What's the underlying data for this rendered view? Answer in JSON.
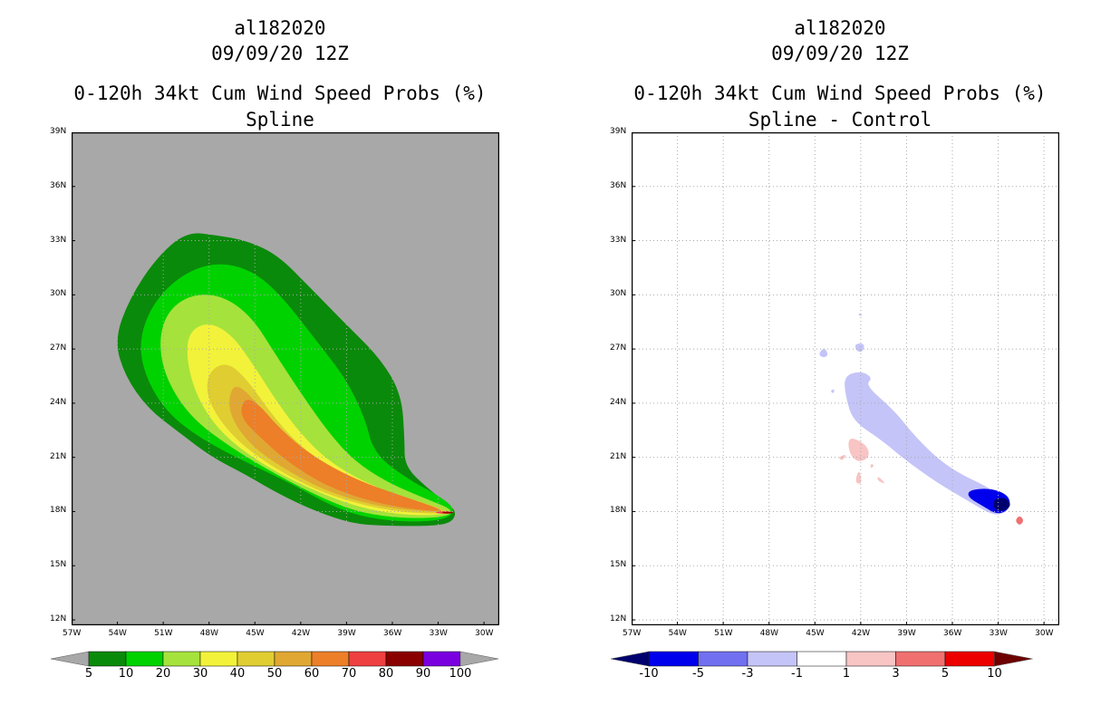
{
  "left": {
    "title_storm": "al182020",
    "title_time": "09/09/20 12Z",
    "title_product": "0-120h 34kt Cum Wind Speed Probs (%)",
    "subtitle": "Spline",
    "colorbar": {
      "labels": [
        "5",
        "10",
        "20",
        "30",
        "40",
        "50",
        "60",
        "70",
        "80",
        "90",
        "100"
      ],
      "colors": [
        "#0a8a0a",
        "#00d200",
        "#a6e23c",
        "#f2f23a",
        "#e0cd32",
        "#e0a832",
        "#ec7f28",
        "#ee4040",
        "#8a0000",
        "#7a00e0"
      ],
      "arrow_color": "#a8a8a8"
    },
    "background": "#a8a8a8"
  },
  "right": {
    "title_storm": "al182020",
    "title_time": "09/09/20 12Z",
    "title_product": "0-120h 34kt Cum Wind Speed Probs (%)",
    "subtitle": "Spline - Control",
    "colorbar": {
      "labels": [
        "-10",
        "-5",
        "-3",
        "-1",
        "1",
        "3",
        "5",
        "10"
      ],
      "colors": [
        "#0000ec",
        "#7070f0",
        "#c4c4f8",
        "#ffffff",
        "#f8c4c4",
        "#f07070",
        "#ec0000"
      ],
      "arrow_left_color": "#00006e",
      "arrow_right_color": "#6e0000"
    }
  },
  "axes": {
    "x_ticks": [
      "57W",
      "54W",
      "51W",
      "48W",
      "45W",
      "42W",
      "39W",
      "36W",
      "33W",
      "30W"
    ],
    "y_ticks": [
      "39N",
      "36N",
      "33N",
      "30N",
      "27N",
      "24N",
      "21N",
      "18N",
      "15N",
      "12N"
    ],
    "x_range": [
      -57,
      -29
    ],
    "y_range": [
      11.7,
      39
    ]
  },
  "chart_data": [
    {
      "type": "heatmap",
      "title": "0-120h 34kt Cum Wind Speed Probs (%) - Spline",
      "levels": [
        5,
        10,
        20,
        30,
        40,
        50,
        60,
        70,
        80,
        90,
        100
      ],
      "contours": [
        {
          "level": 5,
          "lonlat": [
            [
              -54.2,
              27.5
            ],
            [
              -53.2,
              29.8
            ],
            [
              -51.5,
              32.0
            ],
            [
              -49.5,
              33.5
            ],
            [
              -47.5,
              33.3
            ],
            [
              -45.5,
              33.0
            ],
            [
              -43.5,
              32.2
            ],
            [
              -41.5,
              30.5
            ],
            [
              -39.2,
              28.5
            ],
            [
              -36.8,
              26.5
            ],
            [
              -35.4,
              24.5
            ],
            [
              -35.2,
              22.0
            ],
            [
              -35.2,
              20.5
            ],
            [
              -33.7,
              19.3
            ],
            [
              -32.5,
              18.5
            ],
            [
              -31.8,
              18.0
            ],
            [
              -32.1,
              17.4
            ],
            [
              -33.3,
              17.2
            ],
            [
              -36.0,
              17.2
            ],
            [
              -38.5,
              17.3
            ],
            [
              -41.0,
              18.0
            ],
            [
              -43.5,
              19.0
            ],
            [
              -45.5,
              20.0
            ],
            [
              -47.8,
              21.0
            ],
            [
              -50.0,
              22.4
            ],
            [
              -52.0,
              23.7
            ],
            [
              -53.5,
              25.5
            ]
          ]
        },
        {
          "level": 10,
          "lonlat": [
            [
              -52.6,
              27.5
            ],
            [
              -51.7,
              29.5
            ],
            [
              -50.0,
              31.0
            ],
            [
              -47.8,
              31.8
            ],
            [
              -45.5,
              31.5
            ],
            [
              -43.5,
              30.2
            ],
            [
              -41.0,
              27.5
            ],
            [
              -39.0,
              25.3
            ],
            [
              -37.8,
              23.2
            ],
            [
              -37.2,
              21.2
            ],
            [
              -35.0,
              19.8
            ],
            [
              -33.2,
              19.0
            ],
            [
              -31.9,
              18.2
            ],
            [
              -32.3,
              17.6
            ],
            [
              -34.5,
              17.4
            ],
            [
              -37.5,
              17.6
            ],
            [
              -40.0,
              18.3
            ],
            [
              -42.5,
              19.5
            ],
            [
              -45.5,
              20.7
            ],
            [
              -48.5,
              22.0
            ],
            [
              -50.8,
              23.5
            ],
            [
              -52.2,
              25.5
            ]
          ]
        },
        {
          "level": 20,
          "lonlat": [
            [
              -51.3,
              27.3
            ],
            [
              -50.8,
              29.0
            ],
            [
              -49.3,
              30.0
            ],
            [
              -47.2,
              30.0
            ],
            [
              -45.2,
              28.8
            ],
            [
              -43.5,
              26.5
            ],
            [
              -41.7,
              24.2
            ],
            [
              -40.2,
              22.4
            ],
            [
              -38.5,
              20.8
            ],
            [
              -36.3,
              19.6
            ],
            [
              -33.8,
              18.7
            ],
            [
              -32.0,
              18.1
            ],
            [
              -32.4,
              17.7
            ],
            [
              -35.0,
              17.6
            ],
            [
              -38.0,
              17.9
            ],
            [
              -40.5,
              18.7
            ],
            [
              -43.5,
              20.0
            ],
            [
              -46.5,
              21.5
            ],
            [
              -49.2,
              23.2
            ],
            [
              -50.8,
              25.3
            ]
          ]
        },
        {
          "level": 30,
          "lonlat": [
            [
              -49.5,
              26.5
            ],
            [
              -49.3,
              28.0
            ],
            [
              -48.0,
              28.5
            ],
            [
              -46.5,
              27.8
            ],
            [
              -45.0,
              26.0
            ],
            [
              -43.5,
              24.0
            ],
            [
              -42.0,
              22.3
            ],
            [
              -40.2,
              20.8
            ],
            [
              -37.8,
              19.6
            ],
            [
              -35.0,
              18.7
            ],
            [
              -32.5,
              18.1
            ],
            [
              -32.6,
              17.8
            ],
            [
              -35.5,
              17.8
            ],
            [
              -38.5,
              18.3
            ],
            [
              -41.5,
              19.3
            ],
            [
              -44.5,
              20.6
            ],
            [
              -47.2,
              22.3
            ],
            [
              -48.8,
              24.3
            ]
          ]
        },
        {
          "level": 40,
          "lonlat": [
            [
              -48.2,
              24.5
            ],
            [
              -48.0,
              25.8
            ],
            [
              -46.8,
              26.3
            ],
            [
              -45.5,
              25.3
            ],
            [
              -44.0,
              23.5
            ],
            [
              -42.3,
              21.8
            ],
            [
              -40.0,
              20.4
            ],
            [
              -37.0,
              19.3
            ],
            [
              -34.0,
              18.5
            ],
            [
              -32.4,
              18.05
            ],
            [
              -32.7,
              17.85
            ],
            [
              -36.0,
              18.0
            ],
            [
              -39.5,
              18.7
            ],
            [
              -42.5,
              19.8
            ],
            [
              -45.5,
              21.4
            ],
            [
              -47.3,
              23.0
            ]
          ]
        },
        {
          "level": 50,
          "lonlat": [
            [
              -46.8,
              23.6
            ],
            [
              -46.5,
              25.0
            ],
            [
              -45.7,
              24.8
            ],
            [
              -44.4,
              23.5
            ],
            [
              -42.7,
              21.8
            ],
            [
              -40.5,
              20.4
            ],
            [
              -37.8,
              19.4
            ],
            [
              -35.0,
              18.7
            ],
            [
              -32.6,
              18.1
            ],
            [
              -33.0,
              17.95
            ],
            [
              -36.5,
              18.2
            ],
            [
              -40.0,
              19.0
            ],
            [
              -43.0,
              20.3
            ],
            [
              -45.5,
              21.8
            ]
          ]
        },
        {
          "level": 60,
          "lonlat": [
            [
              -46.0,
              23.3
            ],
            [
              -45.7,
              24.3
            ],
            [
              -44.8,
              24.0
            ],
            [
              -43.4,
              22.6
            ],
            [
              -41.3,
              21.1
            ],
            [
              -38.5,
              19.8
            ],
            [
              -35.5,
              18.9
            ],
            [
              -32.7,
              18.1
            ],
            [
              -33.2,
              18.0
            ],
            [
              -36.5,
              18.35
            ],
            [
              -39.8,
              19.2
            ],
            [
              -42.5,
              20.5
            ],
            [
              -44.8,
              22.2
            ]
          ]
        },
        {
          "level": 70,
          "lonlat": [
            [
              -32.5,
              18.05
            ],
            [
              -31.9,
              17.95
            ],
            [
              -32.4,
              17.85
            ],
            [
              -33.4,
              17.95
            ]
          ]
        },
        {
          "level": 80,
          "lonlat": [
            [
              -32.2,
              18.0
            ],
            [
              -31.95,
              17.95
            ],
            [
              -32.3,
              17.88
            ],
            [
              -32.9,
              17.96
            ]
          ]
        }
      ]
    },
    {
      "type": "heatmap",
      "title": "0-120h 34kt Cum Wind Speed Probs (%) - Spline - Control",
      "levels": [
        -10,
        -5,
        -3,
        -1,
        1,
        3,
        5,
        10
      ],
      "contours": [
        {
          "level": -1,
          "lonlat": [
            [
              -43.1,
              25.5
            ],
            [
              -42.0,
              25.8
            ],
            [
              -41.2,
              25.4
            ],
            [
              -41.7,
              25.0
            ],
            [
              -39.8,
              23.6
            ],
            [
              -38.6,
              22.3
            ],
            [
              -36.8,
              20.8
            ],
            [
              -35.3,
              20.0
            ],
            [
              -34.0,
              19.5
            ],
            [
              -32.5,
              18.7
            ],
            [
              -32.1,
              18.3
            ],
            [
              -32.8,
              17.8
            ],
            [
              -33.6,
              17.9
            ],
            [
              -35.2,
              18.7
            ],
            [
              -37.0,
              19.6
            ],
            [
              -39.0,
              20.8
            ],
            [
              -40.7,
              22.0
            ],
            [
              -42.5,
              23.0
            ],
            [
              -43.0,
              24.4
            ]
          ]
        },
        {
          "level": -1,
          "lonlat": [
            [
              -44.8,
              26.7
            ],
            [
              -44.4,
              27.1
            ],
            [
              -44.1,
              26.7
            ],
            [
              -44.4,
              26.5
            ]
          ]
        },
        {
          "level": -1,
          "lonlat": [
            [
              -42.4,
              27.3
            ],
            [
              -41.7,
              27.3
            ],
            [
              -41.9,
              26.8
            ],
            [
              -42.3,
              26.9
            ]
          ]
        },
        {
          "level": -1,
          "lonlat": [
            [
              -42.2,
              28.9
            ],
            [
              -42.0,
              29.0
            ],
            [
              -41.9,
              28.8
            ]
          ]
        },
        {
          "level": -1,
          "lonlat": [
            [
              -44.0,
              24.7
            ],
            [
              -43.7,
              24.8
            ],
            [
              -43.8,
              24.5
            ]
          ]
        },
        {
          "level": -5,
          "lonlat": [
            [
              -34.9,
              19.2
            ],
            [
              -33.5,
              19.3
            ],
            [
              -32.3,
              18.9
            ],
            [
              -32.2,
              18.2
            ],
            [
              -33.0,
              17.8
            ],
            [
              -34.0,
              18.3
            ],
            [
              -35.0,
              18.8
            ]
          ]
        },
        {
          "level": -10,
          "lonlat": [
            [
              -33.3,
              18.7
            ],
            [
              -32.6,
              18.8
            ],
            [
              -32.1,
              18.4
            ],
            [
              -32.6,
              18.0
            ],
            [
              -33.3,
              18.1
            ]
          ]
        },
        {
          "level": 1,
          "lonlat": [
            [
              -42.8,
              22.2
            ],
            [
              -41.6,
              21.7
            ],
            [
              -41.4,
              21.0
            ],
            [
              -42.2,
              20.7
            ],
            [
              -42.8,
              21.3
            ]
          ]
        },
        {
          "level": 1,
          "lonlat": [
            [
              -43.5,
              21.0
            ],
            [
              -42.9,
              21.2
            ],
            [
              -43.2,
              20.8
            ]
          ]
        },
        {
          "level": 1,
          "lonlat": [
            [
              -42.1,
              20.4
            ],
            [
              -41.9,
              19.5
            ],
            [
              -42.4,
              19.6
            ]
          ]
        },
        {
          "level": 1,
          "lonlat": [
            [
              -40.9,
              19.7
            ],
            [
              -40.3,
              19.5
            ],
            [
              -40.9,
              20.0
            ]
          ]
        },
        {
          "level": 1,
          "lonlat": [
            [
              -41.3,
              20.7
            ],
            [
              -41.1,
              20.5
            ],
            [
              -41.4,
              20.4
            ]
          ]
        },
        {
          "level": 3,
          "lonlat": [
            [
              -31.6,
              17.8
            ],
            [
              -31.3,
              17.5
            ],
            [
              -31.6,
              17.2
            ],
            [
              -31.9,
              17.5
            ]
          ]
        }
      ]
    }
  ]
}
